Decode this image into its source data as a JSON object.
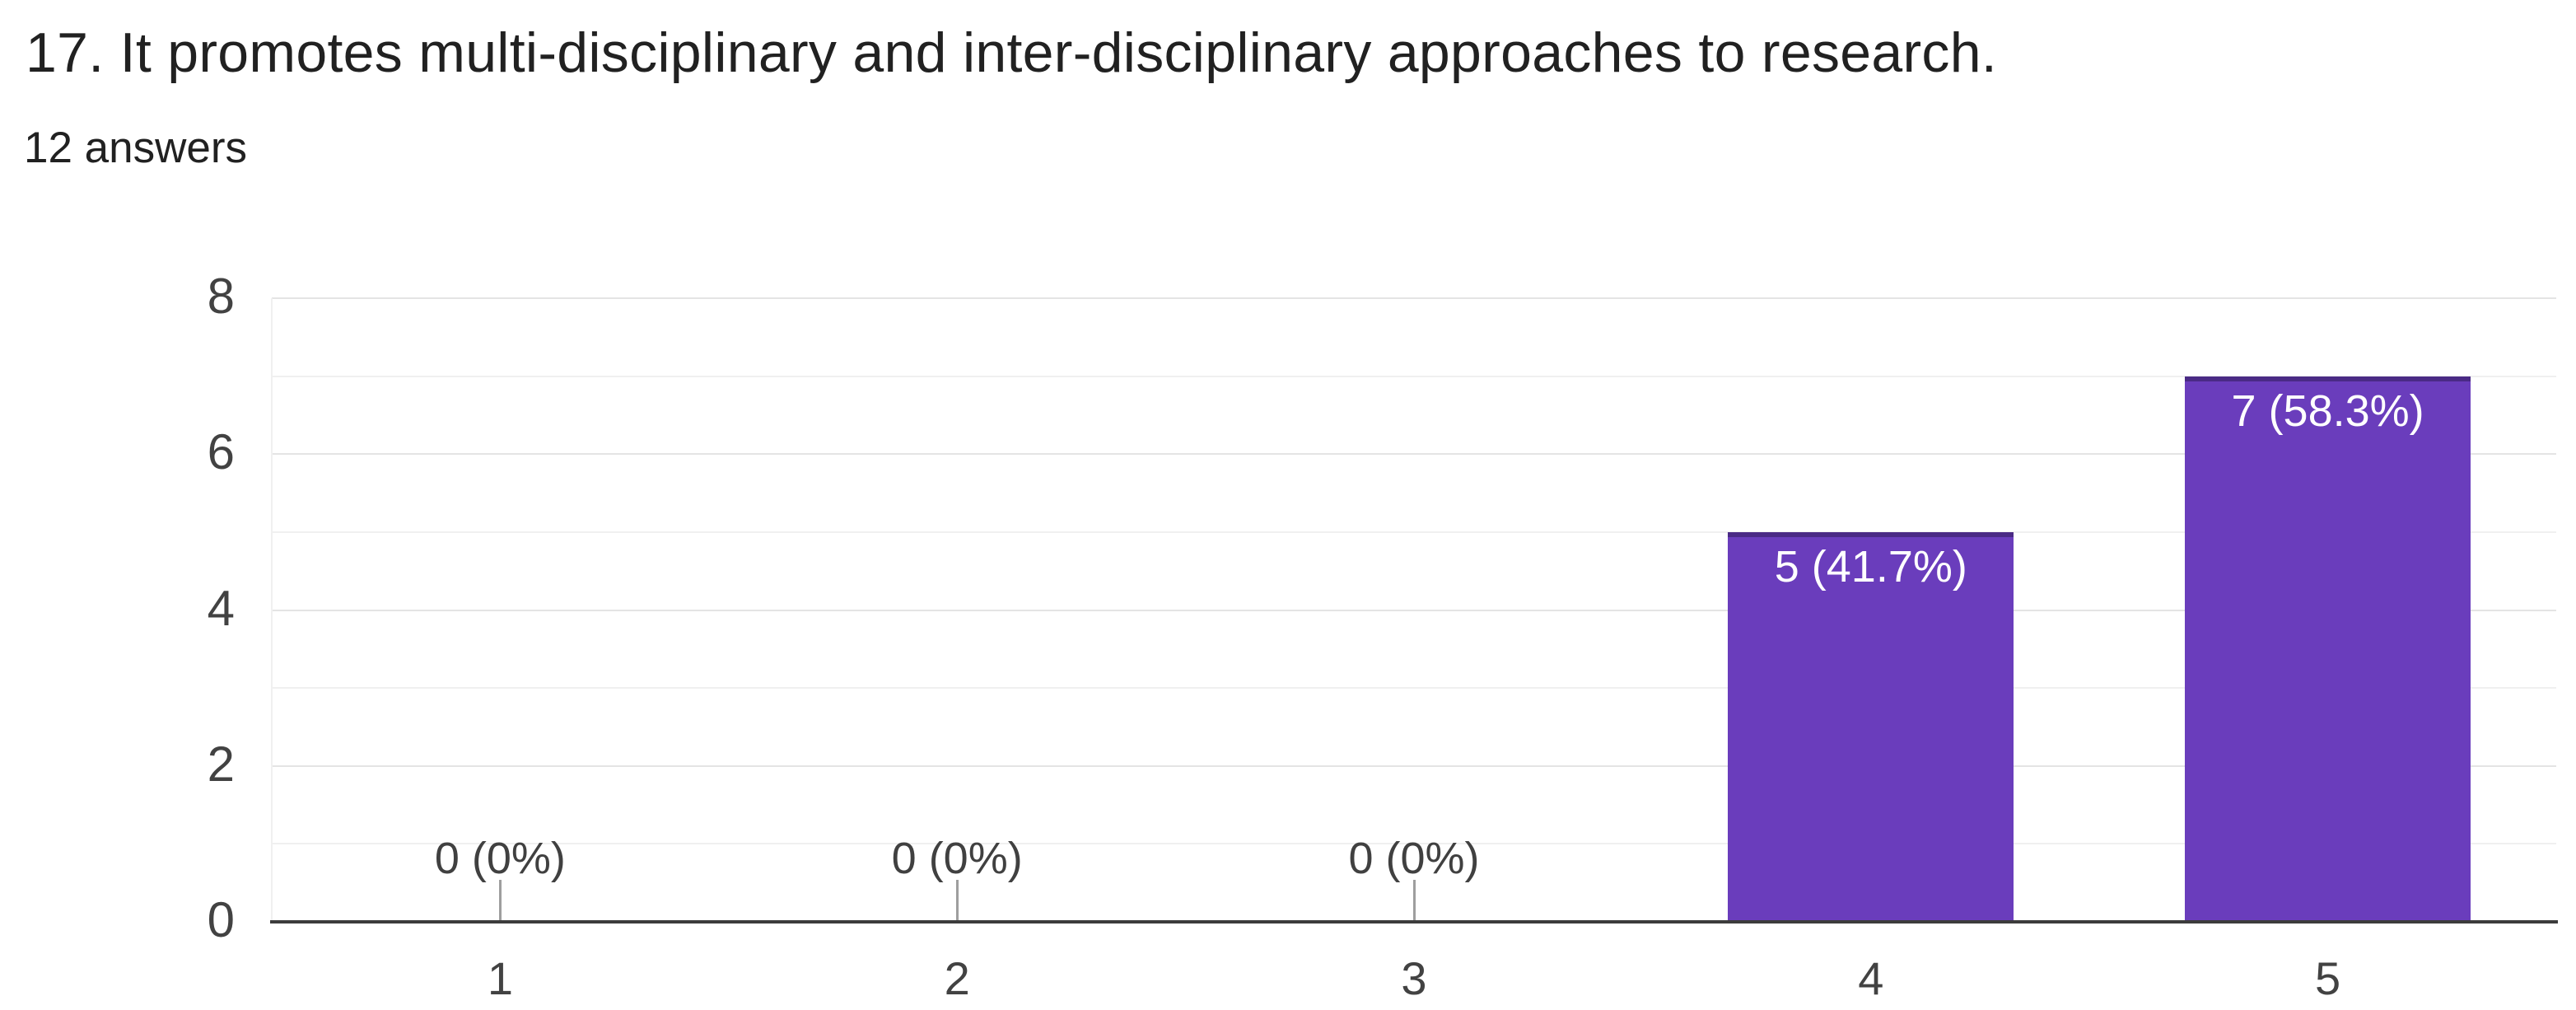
{
  "header": {
    "title": "17. It promotes multi-disciplinary and inter-disciplinary approaches to research.",
    "answers_count": "12 answers"
  },
  "colors": {
    "background": "#ffffff",
    "title_text": "#212121",
    "subtitle_text": "#212121"
  },
  "chart_data": {
    "type": "bar",
    "title": "",
    "xlabel": "",
    "ylabel": "",
    "categories": [
      "1",
      "2",
      "3",
      "4",
      "5"
    ],
    "values": [
      0,
      0,
      0,
      5,
      7
    ],
    "bar_labels": [
      "0 (0%)",
      "0 (0%)",
      "0 (0%)",
      "5 (41.7%)",
      "7 (58.3%)"
    ],
    "ylim": [
      0,
      8
    ],
    "yticks": [
      0,
      2,
      4,
      6,
      8
    ],
    "grid": "on",
    "legend": "none",
    "colors": {
      "bar": "#6a3dbc",
      "bar_top_edge": "#4a2a85",
      "bar_label": "#ffffff",
      "zero_label": "#404040",
      "axis_text": "#424242",
      "baseline": "#3c3c3c",
      "gridline_major": "#e4e4e4",
      "gridline_minor": "#f0f0f0",
      "stem": "#9e9e9e"
    }
  }
}
